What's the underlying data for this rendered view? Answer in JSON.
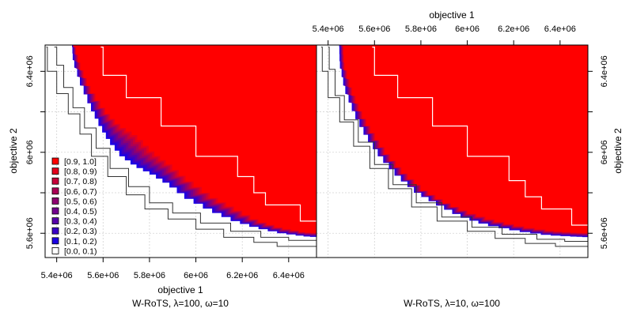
{
  "chart_data": {
    "type": "heatmap",
    "description_kind": "empirical attainment function comparison",
    "x_axis": {
      "label": "objective 1",
      "range": [
        5350000.0,
        6520000.0
      ],
      "ticks": [
        5400000.0,
        5600000.0,
        5800000.0,
        6000000.0,
        6200000.0,
        6400000.0
      ],
      "tick_labels": [
        "5.4e+06",
        "5.6e+06",
        "5.8e+06",
        "6e+06",
        "6.2e+06",
        "6.4e+06"
      ]
    },
    "y_axis": {
      "label": "objective 2",
      "range": [
        5480000.0,
        6530000.0
      ],
      "ticks": [
        5600000.0,
        6000000.0,
        6400000.0
      ],
      "tick_labels": [
        "5.6e+06",
        "6e+06",
        "6.4e+06"
      ],
      "minor_ticks": [
        5800000.0,
        6200000.0
      ]
    },
    "grid": true,
    "legend": {
      "placement": "bottom-left of left panel",
      "entries": [
        {
          "label": "[0.9, 1.0]",
          "color": "#ff0000"
        },
        {
          "label": "[0.8, 0.9)",
          "color": "#e3001c"
        },
        {
          "label": "[0.7, 0.8)",
          "color": "#c60039"
        },
        {
          "label": "[0.6, 0.7)",
          "color": "#aa0055"
        },
        {
          "label": "[0.5, 0.6)",
          "color": "#8e0071"
        },
        {
          "label": "[0.4, 0.5)",
          "color": "#71008e"
        },
        {
          "label": "[0.3, 0.4)",
          "color": "#5500aa"
        },
        {
          "label": "[0.2, 0.3)",
          "color": "#3900c6"
        },
        {
          "label": "[0.1, 0.2)",
          "color": "#1c00e3"
        },
        {
          "label": "[0.0, 0.1)",
          "color": "#ffffff"
        }
      ]
    },
    "panels": [
      {
        "subtitle": "W-RoTS, λ=100, ω=10",
        "region_color": "#ff0000",
        "front_inner_lower": [
          [
            5466000.0,
            6520000.0
          ],
          [
            5470000.0,
            6440000.0
          ],
          [
            5500000.0,
            6330000.0
          ],
          [
            5540000.0,
            6220000.0
          ],
          [
            5580000.0,
            6130000.0
          ],
          [
            5620000.0,
            6050000.0
          ],
          [
            5670000.0,
            5980000.0
          ],
          [
            5730000.0,
            5930000.0
          ],
          [
            5800000.0,
            5890000.0
          ],
          [
            5870000.0,
            5840000.0
          ],
          [
            5950000.0,
            5770000.0
          ],
          [
            6050000.0,
            5710000.0
          ],
          [
            6150000.0,
            5660000.0
          ],
          [
            6250000.0,
            5625000.0
          ],
          [
            6350000.0,
            5600000.0
          ],
          [
            6450000.0,
            5585000.0
          ],
          [
            6520000.0,
            5580000.0
          ]
        ],
        "front_red_lower": [
          [
            5475000.0,
            6520000.0
          ],
          [
            5500000.0,
            6410000.0
          ],
          [
            5540000.0,
            6300000.0
          ],
          [
            5600000.0,
            6200000.0
          ],
          [
            5660000.0,
            6130000.0
          ],
          [
            5730000.0,
            6080000.0
          ],
          [
            5800000.0,
            6000000.0
          ],
          [
            5870000.0,
            5940000.0
          ],
          [
            5950000.0,
            5860000.0
          ],
          [
            6050000.0,
            5780000.0
          ],
          [
            6150000.0,
            5720000.0
          ],
          [
            6250000.0,
            5660000.0
          ],
          [
            6350000.0,
            5625000.0
          ],
          [
            6450000.0,
            5605000.0
          ],
          [
            6520000.0,
            5600000.0
          ]
        ],
        "outer_lines": [
          [
            [
              5355000.0,
              6520000.0
            ],
            [
              5360000.0,
              6400000.0
            ],
            [
              5400000.0,
              6290000.0
            ],
            [
              5450000.0,
              6190000.0
            ],
            [
              5500000.0,
              6090000.0
            ],
            [
              5550000.0,
              5980000.0
            ],
            [
              5620000.0,
              5880000.0
            ],
            [
              5700000.0,
              5790000.0
            ],
            [
              5780000.0,
              5720000.0
            ],
            [
              5880000.0,
              5670000.0
            ],
            [
              6000000.0,
              5620000.0
            ],
            [
              6120000.0,
              5580000.0
            ],
            [
              6250000.0,
              5555000.0
            ],
            [
              6350000.0,
              5535000.0
            ],
            [
              6520000.0,
              5530000.0
            ]
          ],
          [
            [
              5390000.0,
              6520000.0
            ],
            [
              5400000.0,
              6430000.0
            ],
            [
              5430000.0,
              6320000.0
            ],
            [
              5470000.0,
              6220000.0
            ],
            [
              5520000.0,
              6120000.0
            ],
            [
              5570000.0,
              6020000.0
            ],
            [
              5630000.0,
              5920000.0
            ],
            [
              5710000.0,
              5830000.0
            ],
            [
              5800000.0,
              5750000.0
            ],
            [
              5900000.0,
              5700000.0
            ],
            [
              6020000.0,
              5650000.0
            ],
            [
              6150000.0,
              5610000.0
            ],
            [
              6280000.0,
              5580000.0
            ],
            [
              6400000.0,
              5565000.0
            ],
            [
              6520000.0,
              5560000.0
            ]
          ]
        ],
        "inner_line": [
          [
            5590000.0,
            6520000.0
          ],
          [
            5600000.0,
            6380000.0
          ],
          [
            5700000.0,
            6380000.0
          ],
          [
            5700000.0,
            6270000.0
          ],
          [
            5800000.0,
            6270000.0
          ],
          [
            5850000.0,
            6130000.0
          ],
          [
            5950000.0,
            6130000.0
          ],
          [
            6000000.0,
            5980000.0
          ],
          [
            6100000.0,
            5980000.0
          ],
          [
            6180000.0,
            5880000.0
          ],
          [
            6250000.0,
            5800000.0
          ],
          [
            6300000.0,
            5740000.0
          ],
          [
            6400000.0,
            5740000.0
          ],
          [
            6450000.0,
            5660000.0
          ],
          [
            6520000.0,
            5660000.0
          ]
        ]
      },
      {
        "subtitle": "W-RoTS, λ=10, ω=100",
        "region_color": "#ff0000",
        "front_inner_lower": [
          [
            5448000.0,
            6520000.0
          ],
          [
            5450000.0,
            6420000.0
          ],
          [
            5470000.0,
            6300000.0
          ],
          [
            5510000.0,
            6180000.0
          ],
          [
            5560000.0,
            6070000.0
          ],
          [
            5620000.0,
            5970000.0
          ],
          [
            5690000.0,
            5880000.0
          ],
          [
            5770000.0,
            5800000.0
          ],
          [
            5860000.0,
            5740000.0
          ],
          [
            5960000.0,
            5680000.0
          ],
          [
            6070000.0,
            5640000.0
          ],
          [
            6200000.0,
            5610000.0
          ],
          [
            6330000.0,
            5590000.0
          ],
          [
            6450000.0,
            5583000.0
          ],
          [
            6520000.0,
            5580000.0
          ]
        ],
        "front_red_lower": [
          [
            5465000.0,
            6520000.0
          ],
          [
            5470000.0,
            6410000.0
          ],
          [
            5500000.0,
            6290000.0
          ],
          [
            5540000.0,
            6180000.0
          ],
          [
            5590000.0,
            6080000.0
          ],
          [
            5650000.0,
            5980000.0
          ],
          [
            5720000.0,
            5890000.0
          ],
          [
            5800000.0,
            5810000.0
          ],
          [
            5890000.0,
            5750000.0
          ],
          [
            5990000.0,
            5700000.0
          ],
          [
            6100000.0,
            5660000.0
          ],
          [
            6220000.0,
            5630000.0
          ],
          [
            6350000.0,
            5610000.0
          ],
          [
            6450000.0,
            5603000.0
          ],
          [
            6520000.0,
            5600000.0
          ]
        ],
        "outer_lines": [
          [
            [
              5370000.0,
              6520000.0
            ],
            [
              5375000.0,
              6400000.0
            ],
            [
              5400000.0,
              6270000.0
            ],
            [
              5450000.0,
              6150000.0
            ],
            [
              5510000.0,
              6030000.0
            ],
            [
              5580000.0,
              5920000.0
            ],
            [
              5660000.0,
              5820000.0
            ],
            [
              5760000.0,
              5730000.0
            ],
            [
              5870000.0,
              5660000.0
            ],
            [
              6000000.0,
              5610000.0
            ],
            [
              6120000.0,
              5575000.0
            ],
            [
              6250000.0,
              5550000.0
            ],
            [
              6380000.0,
              5535000.0
            ],
            [
              6520000.0,
              5530000.0
            ]
          ],
          [
            [
              5400000.0,
              6520000.0
            ],
            [
              5405000.0,
              6410000.0
            ],
            [
              5430000.0,
              6280000.0
            ],
            [
              5470000.0,
              6160000.0
            ],
            [
              5530000.0,
              6050000.0
            ],
            [
              5600000.0,
              5940000.0
            ],
            [
              5680000.0,
              5840000.0
            ],
            [
              5780000.0,
              5750000.0
            ],
            [
              5890000.0,
              5680000.0
            ],
            [
              6020000.0,
              5630000.0
            ],
            [
              6150000.0,
              5595000.0
            ],
            [
              6300000.0,
              5570000.0
            ],
            [
              6420000.0,
              5560000.0
            ],
            [
              6520000.0,
              5555000.0
            ]
          ]
        ],
        "inner_line": [
          [
            5590000.0,
            6520000.0
          ],
          [
            5600000.0,
            6380000.0
          ],
          [
            5700000.0,
            6380000.0
          ],
          [
            5700000.0,
            6270000.0
          ],
          [
            5800000.0,
            6270000.0
          ],
          [
            5850000.0,
            6130000.0
          ],
          [
            5950000.0,
            6130000.0
          ],
          [
            6000000.0,
            5980000.0
          ],
          [
            6100000.0,
            5980000.0
          ],
          [
            6180000.0,
            5860000.0
          ],
          [
            6250000.0,
            5780000.0
          ],
          [
            6320000.0,
            5720000.0
          ],
          [
            6400000.0,
            5720000.0
          ],
          [
            6450000.0,
            5640000.0
          ],
          [
            6520000.0,
            5640000.0
          ]
        ]
      }
    ]
  }
}
